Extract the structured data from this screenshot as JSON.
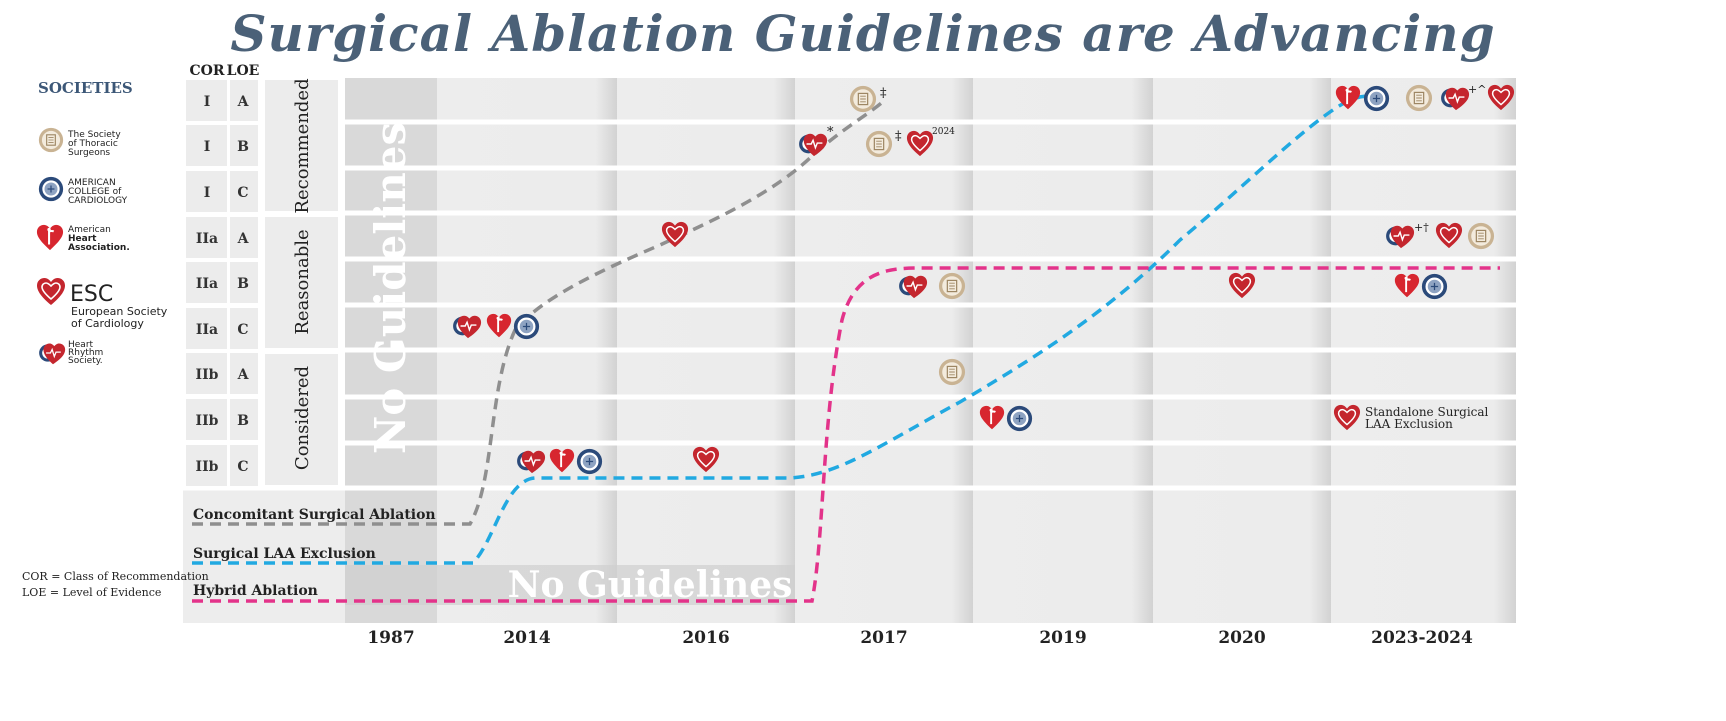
{
  "title": "Surgical Ablation Guidelines are Advancing",
  "societies": {
    "heading": "SOCIETIES",
    "items": [
      {
        "icon": "sts-seal-icon",
        "lines": [
          "The Society",
          "of Thoracic",
          "Surgeons"
        ]
      },
      {
        "icon": "acc-seal-icon",
        "lines": [
          "AMERICAN",
          "COLLEGE of",
          "CARDIOLOGY"
        ]
      },
      {
        "icon": "aha-heart-icon",
        "lines": [
          "American",
          "Heart",
          "Association."
        ]
      },
      {
        "icon": "esc-heart-icon",
        "lines": [
          "ESC",
          "European Society",
          "of Cardiology"
        ]
      },
      {
        "icon": "hrs-heart-icon",
        "lines": [
          "Heart",
          "Rhythm",
          "Society."
        ]
      }
    ]
  },
  "table": {
    "cor_header": "COR",
    "loe_header": "LOE",
    "rows": [
      {
        "cor": "I",
        "loe": "A"
      },
      {
        "cor": "I",
        "loe": "B"
      },
      {
        "cor": "I",
        "loe": "C"
      },
      {
        "cor": "IIa",
        "loe": "A"
      },
      {
        "cor": "IIa",
        "loe": "B"
      },
      {
        "cor": "IIa",
        "loe": "C"
      },
      {
        "cor": "IIb",
        "loe": "A"
      },
      {
        "cor": "IIb",
        "loe": "B"
      },
      {
        "cor": "IIb",
        "loe": "C"
      }
    ],
    "groups": [
      "Recommended",
      "Reasonable",
      "Considered"
    ]
  },
  "years": [
    "1987",
    "2014",
    "2016",
    "2017",
    "2019",
    "2020",
    "2023-2024"
  ],
  "no_guidelines_label": "No Guidelines",
  "lines": [
    {
      "label": "Concomitant Surgical Ablation",
      "color": "#8f8f8f"
    },
    {
      "label": "Surgical LAA Exclusion",
      "color": "#21a9e1"
    },
    {
      "label": "Hybrid Ablation",
      "color": "#e3338a"
    }
  ],
  "legend": [
    "COR = Class of Recommendation",
    "LOE = Level of Evidence"
  ],
  "notes": {
    "sts_2017_top": "‡",
    "sts_2017_b": "‡",
    "esc_2024": "2024",
    "hrs_2017": "*",
    "hrs_2023_top": "+^",
    "hrs_2023_iia": "+†",
    "laa_standalone": [
      "Standalone Surgical",
      "LAA Exclusion"
    ]
  },
  "colors": {
    "title": "#4b6178",
    "aha_red": "#d7262f",
    "esc_red": "#c4262e",
    "acc_navy": "#2b4a7a",
    "sts_tan": "#c9b393",
    "grid_band": "#ececec"
  }
}
